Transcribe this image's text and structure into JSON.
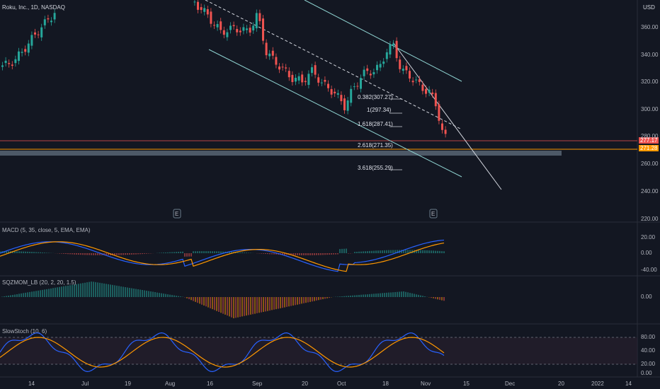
{
  "header": {
    "symbol_title": "Roku, Inc., 1D, NASDAQ",
    "currency": "USD"
  },
  "main_chart": {
    "price_axis": [
      "360.00",
      "340.00",
      "320.00",
      "300.00",
      "280.00",
      "260.00",
      "240.00",
      "220.00"
    ],
    "last_price": "277.17",
    "level_price": "271.28",
    "fib_levels": [
      {
        "label": "0.382(307.27)"
      },
      {
        "label": "1(297.34)"
      },
      {
        "label": "1.618(287.41)"
      },
      {
        "label": "2.618(271.35)"
      },
      {
        "label": "3.618(255.29)"
      }
    ],
    "earnings_marker": "E"
  },
  "indicators": {
    "macd": {
      "label": "MACD (5, 35, close, 5, EMA, EMA)",
      "axis": [
        "20.00",
        "0.00",
        "-40.00"
      ]
    },
    "sqzmom": {
      "label": "SQZMOM_LB (20, 2, 20, 1.5)",
      "axis": [
        "0.00"
      ]
    },
    "slowstoch": {
      "label": "SlowStoch (10, 6)",
      "axis": [
        "80.00",
        "40.00",
        "20.00",
        "0.00"
      ]
    }
  },
  "time_axis": [
    "14",
    "Jul",
    "19",
    "Aug",
    "16",
    "Sep",
    "20",
    "Oct",
    "18",
    "Nov",
    "15",
    "Dec",
    "20",
    "2022",
    "14"
  ],
  "colors": {
    "background": "#131722",
    "up": "#26a69a",
    "down": "#ef5350",
    "channel": "#8fd3d1",
    "macd_line": "#2962ff",
    "signal_line": "#ff9800"
  }
}
